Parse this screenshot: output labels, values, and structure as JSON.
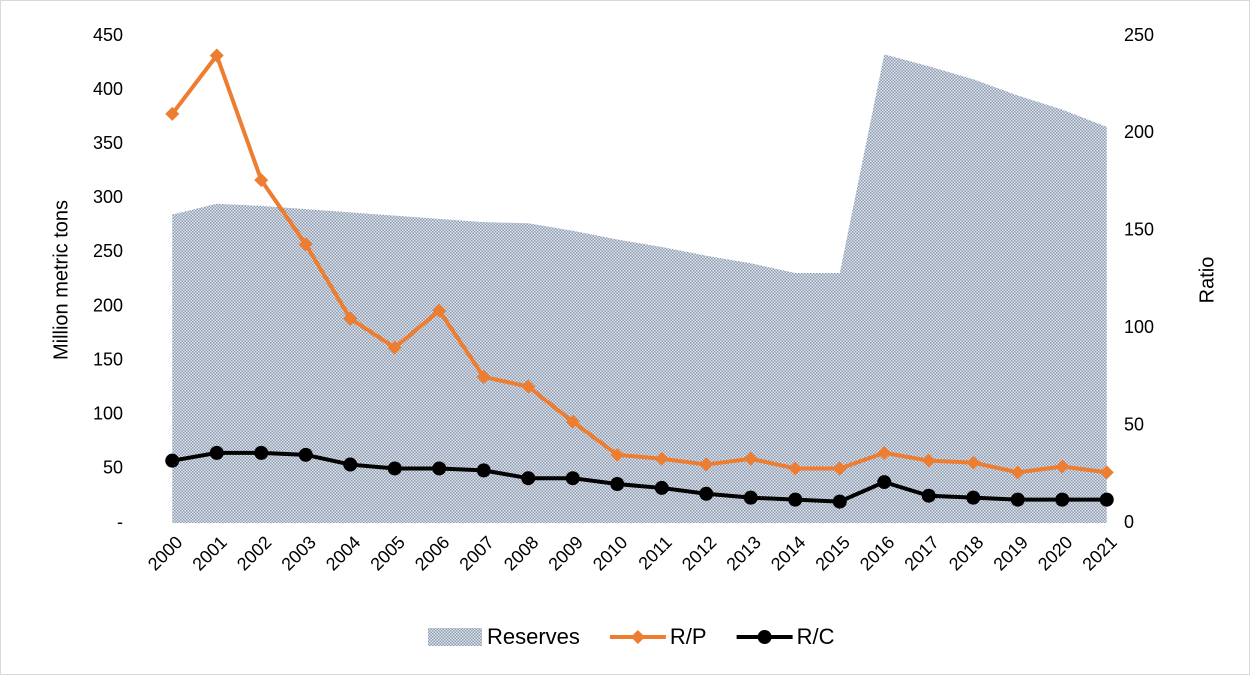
{
  "chart_data": {
    "type": "line",
    "categories": [
      "2000",
      "2001",
      "2002",
      "2003",
      "2004",
      "2005",
      "2006",
      "2007",
      "2008",
      "2009",
      "2010",
      "2011",
      "2012",
      "2013",
      "2014",
      "2015",
      "2016",
      "2017",
      "2018",
      "2019",
      "2020",
      "2021"
    ],
    "series": [
      {
        "name": "Reserves",
        "type": "area",
        "color": "#9aa9bd",
        "values": [
          285,
          295,
          293,
          290,
          287,
          284,
          281,
          278,
          277,
          270,
          262,
          255,
          247,
          240,
          231,
          231,
          433,
          422,
          410,
          395,
          382,
          366
        ]
      },
      {
        "name": "R/P",
        "type": "line",
        "marker": "diamond",
        "color": "#ed7d31",
        "axis": "y2",
        "values": [
          210,
          240,
          176,
          143,
          105,
          90,
          109,
          75,
          70,
          52,
          35,
          33,
          30,
          33,
          28,
          28,
          36,
          32,
          31,
          26,
          29,
          26
        ]
      },
      {
        "name": "R/C",
        "type": "line",
        "marker": "circle",
        "color": "#000000",
        "axis": "y2",
        "values": [
          32,
          36,
          36,
          35,
          30,
          28,
          28,
          27,
          23,
          23,
          20,
          18,
          15,
          13,
          12,
          11,
          21,
          14,
          13,
          12,
          12,
          12
        ]
      }
    ],
    "ylabel": "Million metric tons",
    "y2label": "Ratio",
    "ylim": [
      0,
      450
    ],
    "yticks": [
      {
        "value": 0,
        "label": "-"
      },
      50,
      100,
      150,
      200,
      250,
      300,
      350,
      400,
      450
    ],
    "y2lim": [
      0,
      250
    ],
    "y2ticks": [
      0,
      50,
      100,
      150,
      200,
      250
    ],
    "grid": false,
    "legend": "bottom"
  }
}
